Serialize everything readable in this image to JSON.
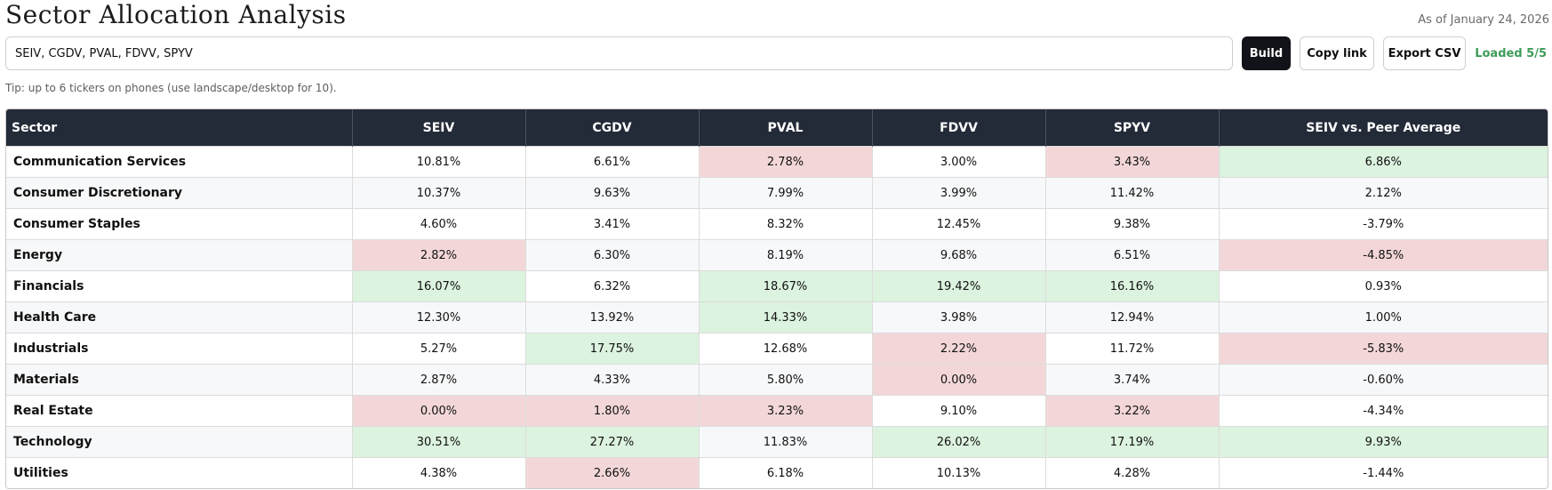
{
  "header": {
    "title": "Sector Allocation Analysis",
    "as_of": "As of January 24, 2026"
  },
  "controls": {
    "tickers_value": "SEIV, CGDV, PVAL, FDVV, SPYV",
    "build_label": "Build",
    "copy_link_label": "Copy link",
    "export_csv_label": "Export CSV",
    "loaded_status": "Loaded 5/5"
  },
  "tip": "Tip: up to 6 tickers on phones (use landscape/desktop for 10).",
  "colors": {
    "header_bg": "#232a38",
    "highlight_high": "#dcf3df",
    "highlight_low": "#f3d7d8",
    "status_green": "#3e9b58",
    "build_bg": "#111318"
  },
  "table": {
    "columns": [
      "Sector",
      "SEIV",
      "CGDV",
      "PVAL",
      "FDVV",
      "SPYV",
      "SEIV vs. Peer Average"
    ],
    "rows": [
      {
        "sector": "Communication Services",
        "cells": [
          {
            "v": "10.81%",
            "h": ""
          },
          {
            "v": "6.61%",
            "h": ""
          },
          {
            "v": "2.78%",
            "h": "lo"
          },
          {
            "v": "3.00%",
            "h": ""
          },
          {
            "v": "3.43%",
            "h": "lo"
          },
          {
            "v": "6.86%",
            "h": "hi"
          }
        ]
      },
      {
        "sector": "Consumer Discretionary",
        "cells": [
          {
            "v": "10.37%",
            "h": ""
          },
          {
            "v": "9.63%",
            "h": ""
          },
          {
            "v": "7.99%",
            "h": ""
          },
          {
            "v": "3.99%",
            "h": ""
          },
          {
            "v": "11.42%",
            "h": ""
          },
          {
            "v": "2.12%",
            "h": ""
          }
        ]
      },
      {
        "sector": "Consumer Staples",
        "cells": [
          {
            "v": "4.60%",
            "h": ""
          },
          {
            "v": "3.41%",
            "h": ""
          },
          {
            "v": "8.32%",
            "h": ""
          },
          {
            "v": "12.45%",
            "h": ""
          },
          {
            "v": "9.38%",
            "h": ""
          },
          {
            "v": "-3.79%",
            "h": ""
          }
        ]
      },
      {
        "sector": "Energy",
        "cells": [
          {
            "v": "2.82%",
            "h": "lo"
          },
          {
            "v": "6.30%",
            "h": ""
          },
          {
            "v": "8.19%",
            "h": ""
          },
          {
            "v": "9.68%",
            "h": ""
          },
          {
            "v": "6.51%",
            "h": ""
          },
          {
            "v": "-4.85%",
            "h": "lo"
          }
        ]
      },
      {
        "sector": "Financials",
        "cells": [
          {
            "v": "16.07%",
            "h": "hi"
          },
          {
            "v": "6.32%",
            "h": ""
          },
          {
            "v": "18.67%",
            "h": "hi"
          },
          {
            "v": "19.42%",
            "h": "hi"
          },
          {
            "v": "16.16%",
            "h": "hi"
          },
          {
            "v": "0.93%",
            "h": ""
          }
        ]
      },
      {
        "sector": "Health Care",
        "cells": [
          {
            "v": "12.30%",
            "h": ""
          },
          {
            "v": "13.92%",
            "h": ""
          },
          {
            "v": "14.33%",
            "h": "hi"
          },
          {
            "v": "3.98%",
            "h": ""
          },
          {
            "v": "12.94%",
            "h": ""
          },
          {
            "v": "1.00%",
            "h": ""
          }
        ]
      },
      {
        "sector": "Industrials",
        "cells": [
          {
            "v": "5.27%",
            "h": ""
          },
          {
            "v": "17.75%",
            "h": "hi"
          },
          {
            "v": "12.68%",
            "h": ""
          },
          {
            "v": "2.22%",
            "h": "lo"
          },
          {
            "v": "11.72%",
            "h": ""
          },
          {
            "v": "-5.83%",
            "h": "lo"
          }
        ]
      },
      {
        "sector": "Materials",
        "cells": [
          {
            "v": "2.87%",
            "h": ""
          },
          {
            "v": "4.33%",
            "h": ""
          },
          {
            "v": "5.80%",
            "h": ""
          },
          {
            "v": "0.00%",
            "h": "lo"
          },
          {
            "v": "3.74%",
            "h": ""
          },
          {
            "v": "-0.60%",
            "h": ""
          }
        ]
      },
      {
        "sector": "Real Estate",
        "cells": [
          {
            "v": "0.00%",
            "h": "lo"
          },
          {
            "v": "1.80%",
            "h": "lo"
          },
          {
            "v": "3.23%",
            "h": "lo"
          },
          {
            "v": "9.10%",
            "h": ""
          },
          {
            "v": "3.22%",
            "h": "lo"
          },
          {
            "v": "-4.34%",
            "h": ""
          }
        ]
      },
      {
        "sector": "Technology",
        "cells": [
          {
            "v": "30.51%",
            "h": "hi"
          },
          {
            "v": "27.27%",
            "h": "hi"
          },
          {
            "v": "11.83%",
            "h": ""
          },
          {
            "v": "26.02%",
            "h": "hi"
          },
          {
            "v": "17.19%",
            "h": "hi"
          },
          {
            "v": "9.93%",
            "h": "hi"
          }
        ]
      },
      {
        "sector": "Utilities",
        "cells": [
          {
            "v": "4.38%",
            "h": ""
          },
          {
            "v": "2.66%",
            "h": "lo"
          },
          {
            "v": "6.18%",
            "h": ""
          },
          {
            "v": "10.13%",
            "h": ""
          },
          {
            "v": "4.28%",
            "h": ""
          },
          {
            "v": "-1.44%",
            "h": ""
          }
        ]
      }
    ]
  }
}
